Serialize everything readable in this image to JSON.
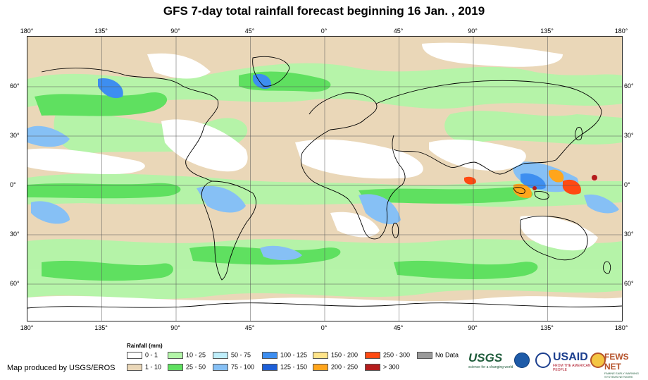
{
  "title": "GFS 7-day total rainfall forecast beginning 16 Jan. , 2019",
  "lon_ticks": [
    "180°",
    "135°",
    "90°",
    "45°",
    "0°",
    "45°",
    "90°",
    "135°",
    "180°"
  ],
  "lat_ticks": [
    "60°",
    "30°",
    "0°",
    "30°",
    "60°"
  ],
  "legend": {
    "title": "Rainfall (mm)",
    "items": [
      {
        "label": "0 - 1",
        "color": "#ffffff"
      },
      {
        "label": "1 - 10",
        "color": "#ead7b8"
      },
      {
        "label": "10 - 25",
        "color": "#b3f5a8"
      },
      {
        "label": "25 - 50",
        "color": "#5fe060"
      },
      {
        "label": "50 - 75",
        "color": "#bfeefb"
      },
      {
        "label": "75 - 100",
        "color": "#86c0f5"
      },
      {
        "label": "100 - 125",
        "color": "#3d8ef0"
      },
      {
        "label": "125 - 150",
        "color": "#1d5fd8"
      },
      {
        "label": "150 - 200",
        "color": "#ffe48a"
      },
      {
        "label": "200 - 250",
        "color": "#ffa51c"
      },
      {
        "label": "250 - 300",
        "color": "#ff4a12"
      },
      {
        "label": "> 300",
        "color": "#b51c1c"
      },
      {
        "label": "No Data",
        "color": "#9a9a9a"
      }
    ]
  },
  "credit": "Map produced by USGS/EROS",
  "logos": {
    "usgs": "USGS",
    "usgs_tagline": "science for a changing world",
    "usaid": "USAID",
    "usaid_tagline": "FROM THE AMERICAN PEOPLE",
    "fews": "FEWS NET",
    "fews_tagline": "FAMINE EARLY WARNING SYSTEMS NETWORK"
  }
}
